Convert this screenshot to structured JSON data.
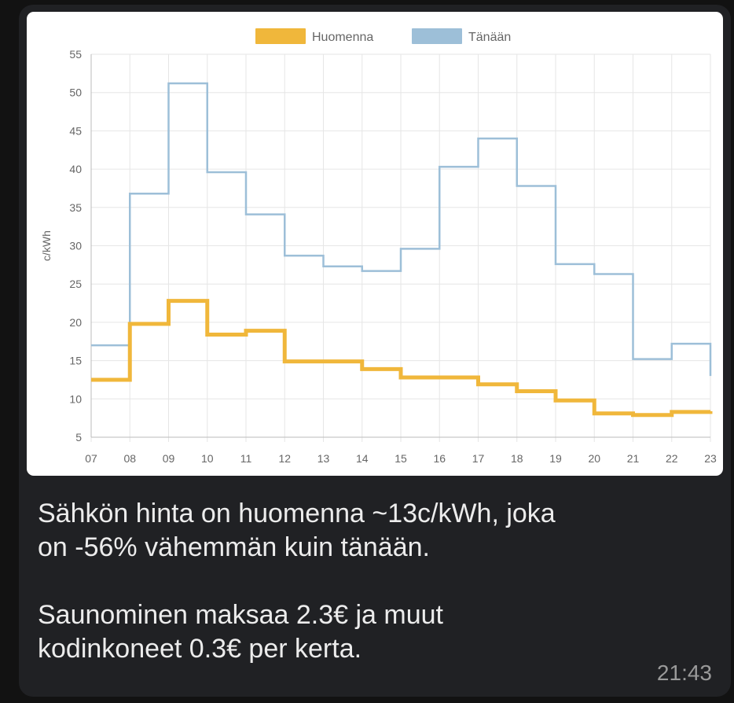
{
  "message": {
    "lines": [
      "Sähkön hinta on huomenna ~13c/kWh, joka",
      "on -56% vähemmän kuin tänään.",
      "",
      "Saunominen maksaa 2.3€ ja muut",
      "kodinkoneet 0.3€ per kerta."
    ],
    "timestamp": "21:43"
  },
  "chart_data": {
    "type": "line",
    "step": true,
    "x": [
      7,
      8,
      9,
      10,
      11,
      12,
      13,
      14,
      15,
      16,
      17,
      18,
      19,
      20,
      21,
      22,
      23
    ],
    "tick_labels": [
      "07",
      "08",
      "09",
      "10",
      "11",
      "12",
      "13",
      "14",
      "15",
      "16",
      "17",
      "18",
      "19",
      "20",
      "21",
      "22",
      "23"
    ],
    "ylabel": "c/kWh",
    "ylim": [
      5,
      55
    ],
    "yticks": [
      5,
      10,
      15,
      20,
      25,
      30,
      35,
      40,
      45,
      50,
      55
    ],
    "grid": true,
    "legend": "top-center",
    "series": [
      {
        "name": "Huomenna",
        "color": "#f0b73b",
        "values": [
          12.5,
          19.8,
          22.8,
          18.4,
          18.9,
          14.9,
          14.9,
          13.9,
          12.8,
          12.8,
          11.9,
          11.0,
          9.8,
          8.1,
          7.9,
          8.3,
          8.4
        ]
      },
      {
        "name": "Tänään",
        "color": "#9dbfd8",
        "values": [
          17.0,
          36.8,
          51.2,
          39.6,
          34.1,
          28.7,
          27.3,
          26.7,
          29.6,
          40.3,
          44.0,
          37.8,
          27.6,
          26.3,
          15.2,
          17.2,
          13.0
        ]
      }
    ]
  }
}
